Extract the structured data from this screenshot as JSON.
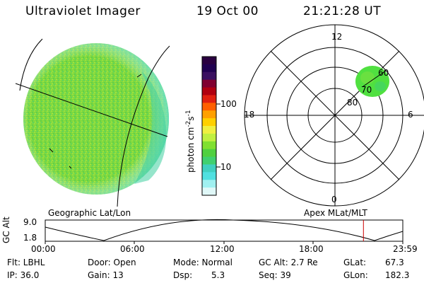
{
  "header": {
    "instrument": "Ultraviolet Imager",
    "date": "19 Oct 00",
    "time": "21:21:28 UT"
  },
  "colorbar": {
    "unit_main": "photon cm",
    "unit_sup1": "-2",
    "unit_mid": "s",
    "unit_sup2": "-1",
    "ticks": [
      "100",
      "10"
    ],
    "colors": [
      "#2a0040",
      "#200050",
      "#3a1060",
      "#800030",
      "#b00010",
      "#e02010",
      "#ff6000",
      "#ffa000",
      "#ffd000",
      "#f0f040",
      "#c0f040",
      "#80e030",
      "#50d040",
      "#40d070",
      "#40d0c0",
      "#50e0e0",
      "#a0f0f0",
      "#e0f8f8"
    ]
  },
  "left_panel": {
    "label": "Geographic Lat/Lon"
  },
  "right_panel": {
    "label": "Apex MLat/MLT",
    "mlt_labels": {
      "top": "12",
      "left": "18",
      "right": "6",
      "bottom": "0"
    },
    "lat_labels": [
      "80",
      "70",
      "60"
    ],
    "spot_color": "#50e040"
  },
  "timeline": {
    "ylabel": "GC Alt",
    "ymax": "9.0",
    "ymin": "1.8",
    "ticks": [
      "00:00",
      "06:00",
      "12:00",
      "18:00",
      "23:59"
    ],
    "marker_hour": 21.36,
    "marker_color": "#cc0000"
  },
  "info": {
    "flt": "Flt: LBHL",
    "ip": "IP: 36.0",
    "door": "Door: Open",
    "gain": "Gain: 13",
    "mode": "Mode: Normal",
    "dsp_label": "Dsp:",
    "dsp_value": "5.3",
    "gc_alt": "GC Alt: 2.7 Re",
    "seq": "Seq: 39",
    "glat_label": "GLat:",
    "glat_value": "67.3",
    "glon_label": "GLon:",
    "glon_value": "182.3"
  }
}
